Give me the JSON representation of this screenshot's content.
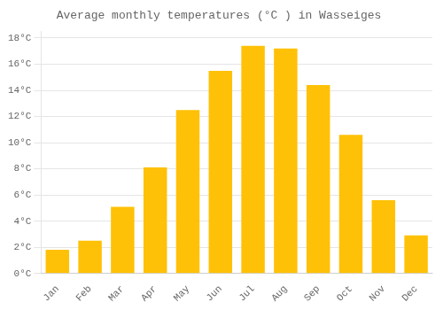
{
  "chart_data": {
    "type": "bar",
    "title": "Average monthly temperatures (°C ) in Wasseiges",
    "categories": [
      "Jan",
      "Feb",
      "Mar",
      "Apr",
      "May",
      "Jun",
      "Jul",
      "Aug",
      "Sep",
      "Oct",
      "Nov",
      "Dec"
    ],
    "values": [
      1.8,
      2.5,
      5.1,
      8.1,
      12.5,
      15.5,
      17.4,
      17.2,
      14.4,
      10.6,
      5.6,
      2.9
    ],
    "color": "#FFC107",
    "ylim": [
      0,
      18.5
    ],
    "yticks": [
      {
        "value": 0,
        "label": "0°C"
      },
      {
        "value": 2,
        "label": "2°C"
      },
      {
        "value": 4,
        "label": "4°C"
      },
      {
        "value": 6,
        "label": "6°C"
      },
      {
        "value": 8,
        "label": "8°C"
      },
      {
        "value": 10,
        "label": "10°C"
      },
      {
        "value": 12,
        "label": "12°C"
      },
      {
        "value": 14,
        "label": "14°C"
      },
      {
        "value": 16,
        "label": "16°C"
      },
      {
        "value": 18,
        "label": "18°C"
      }
    ],
    "grid": true
  }
}
